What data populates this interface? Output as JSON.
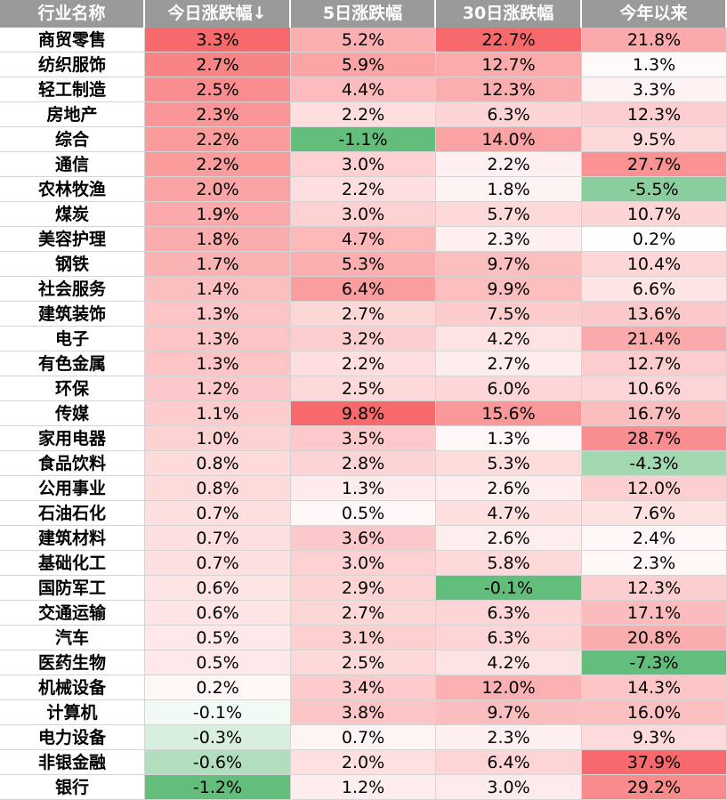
{
  "chart_data": {
    "type": "table",
    "columns": [
      "行业名称",
      "今日涨跌幅↓",
      "5日涨跌幅",
      "30日涨跌幅",
      "今年以来"
    ],
    "rows": [
      {
        "name": "商贸零售",
        "values": [
          3.3,
          5.2,
          22.7,
          21.8
        ]
      },
      {
        "name": "纺织服饰",
        "values": [
          2.7,
          5.9,
          12.7,
          1.3
        ]
      },
      {
        "name": "轻工制造",
        "values": [
          2.5,
          4.4,
          12.3,
          3.3
        ]
      },
      {
        "name": "房地产",
        "values": [
          2.3,
          2.2,
          6.3,
          12.3
        ]
      },
      {
        "name": "综合",
        "values": [
          2.2,
          -1.1,
          14.0,
          9.5
        ]
      },
      {
        "name": "通信",
        "values": [
          2.2,
          3.0,
          2.2,
          27.7
        ]
      },
      {
        "name": "农林牧渔",
        "values": [
          2.0,
          2.2,
          1.8,
          -5.5
        ]
      },
      {
        "name": "煤炭",
        "values": [
          1.9,
          3.0,
          5.7,
          10.7
        ]
      },
      {
        "name": "美容护理",
        "values": [
          1.8,
          4.7,
          2.3,
          0.2
        ]
      },
      {
        "name": "钢铁",
        "values": [
          1.7,
          5.3,
          9.7,
          10.4
        ]
      },
      {
        "name": "社会服务",
        "values": [
          1.4,
          6.4,
          9.9,
          6.6
        ]
      },
      {
        "name": "建筑装饰",
        "values": [
          1.3,
          2.7,
          7.5,
          13.6
        ]
      },
      {
        "name": "电子",
        "values": [
          1.3,
          3.2,
          4.2,
          21.4
        ]
      },
      {
        "name": "有色金属",
        "values": [
          1.3,
          2.2,
          2.7,
          12.7
        ]
      },
      {
        "name": "环保",
        "values": [
          1.2,
          2.5,
          6.0,
          10.6
        ]
      },
      {
        "name": "传媒",
        "values": [
          1.1,
          9.8,
          15.6,
          16.7
        ]
      },
      {
        "name": "家用电器",
        "values": [
          1.0,
          3.5,
          1.3,
          28.7
        ]
      },
      {
        "name": "食品饮料",
        "values": [
          0.8,
          2.8,
          5.3,
          -4.3
        ]
      },
      {
        "name": "公用事业",
        "values": [
          0.8,
          1.3,
          2.6,
          12.0
        ]
      },
      {
        "name": "石油石化",
        "values": [
          0.7,
          0.5,
          4.7,
          7.6
        ]
      },
      {
        "name": "建筑材料",
        "values": [
          0.7,
          3.6,
          2.6,
          2.4
        ]
      },
      {
        "name": "基础化工",
        "values": [
          0.7,
          3.0,
          5.8,
          2.3
        ]
      },
      {
        "name": "国防军工",
        "values": [
          0.6,
          2.9,
          -0.1,
          12.3
        ]
      },
      {
        "name": "交通运输",
        "values": [
          0.6,
          2.7,
          6.3,
          17.1
        ]
      },
      {
        "name": "汽车",
        "values": [
          0.5,
          3.1,
          6.3,
          20.8
        ]
      },
      {
        "name": "医药生物",
        "values": [
          0.5,
          2.5,
          4.2,
          -7.3
        ]
      },
      {
        "name": "机械设备",
        "values": [
          0.2,
          3.4,
          12.0,
          14.3
        ]
      },
      {
        "name": "计算机",
        "values": [
          -0.1,
          3.8,
          9.7,
          16.0
        ]
      },
      {
        "name": "电力设备",
        "values": [
          -0.3,
          0.7,
          2.3,
          9.3
        ]
      },
      {
        "name": "非银金融",
        "values": [
          -0.6,
          2.0,
          6.4,
          37.9
        ]
      },
      {
        "name": "银行",
        "values": [
          -1.2,
          1.2,
          3.0,
          29.2
        ]
      }
    ],
    "colors": {
      "header_bg": "#9a9a9a",
      "header_text": "#ffffff",
      "positive_max": "#f8696b",
      "negative_max": "#63be7b",
      "neutral": "#ffffff",
      "grid": "#d4d4d4"
    }
  }
}
